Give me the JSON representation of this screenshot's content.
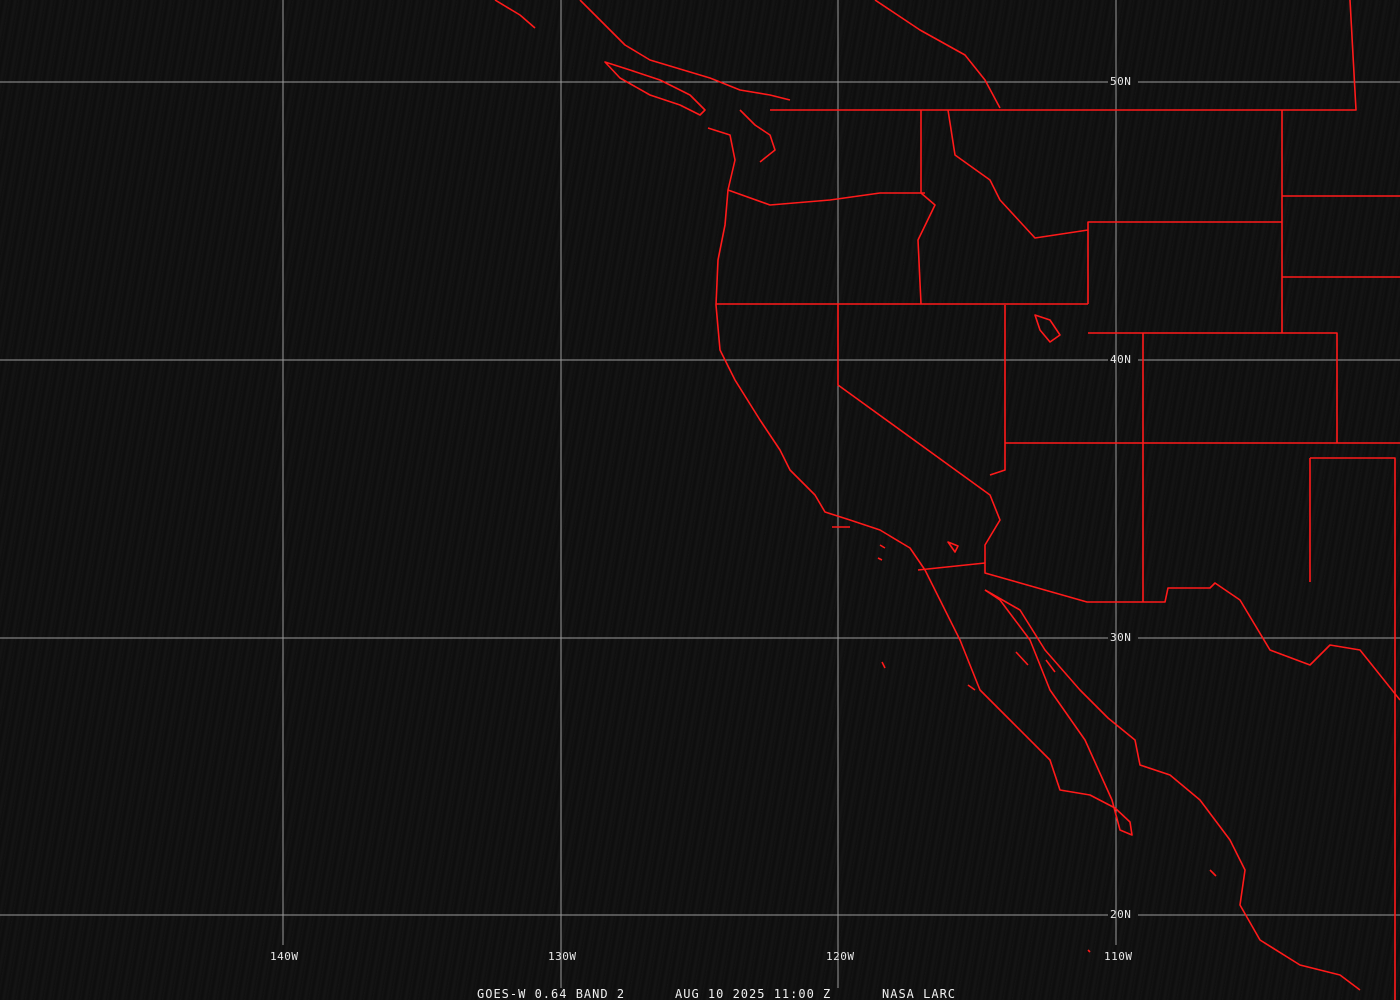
{
  "map": {
    "lat_labels": [
      "50N",
      "40N",
      "30N",
      "20N"
    ],
    "lon_labels": [
      "140W",
      "130W",
      "120W",
      "110W"
    ],
    "grid_color": "#9a9a9a",
    "boundary_color": "#ff1a1a"
  },
  "caption": {
    "product": "GOES-W 0.64 BAND 2",
    "datetime": "AUG 10 2025 11:00 Z",
    "source": "NASA LARC"
  }
}
